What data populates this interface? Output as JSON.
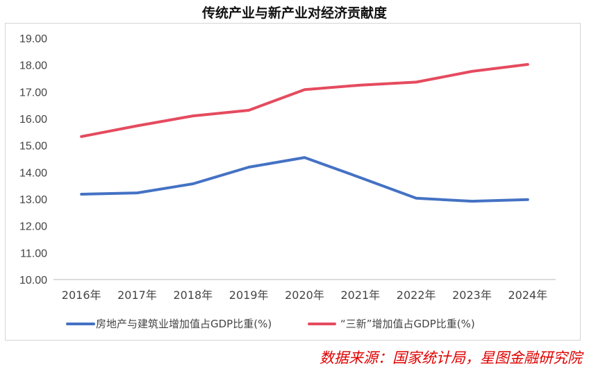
{
  "chart_data": {
    "type": "line",
    "title": "传统产业与新产业对经济贡献度",
    "xlabel": "",
    "ylabel": "",
    "categories": [
      "2016年",
      "2017年",
      "2018年",
      "2019年",
      "2020年",
      "2021年",
      "2022年",
      "2023年",
      "2024年"
    ],
    "ylim": [
      10,
      19
    ],
    "yticks": [
      "10.00",
      "11.00",
      "12.00",
      "13.00",
      "14.00",
      "15.00",
      "16.00",
      "17.00",
      "18.00",
      "19.00"
    ],
    "grid": false,
    "legend_position": "bottom",
    "series": [
      {
        "name": "房地产与建筑业增加值占GDP比重(%)",
        "color": "#4472c4",
        "values": [
          13.18,
          13.23,
          13.57,
          14.19,
          14.55,
          13.8,
          13.03,
          12.92,
          12.98
        ]
      },
      {
        "name": "“三新”增加值占GDP比重(%)",
        "color": "#e54b5e",
        "values": [
          15.33,
          15.73,
          16.1,
          16.31,
          17.08,
          17.25,
          17.36,
          17.76,
          18.02
        ]
      }
    ]
  },
  "source": "数据来源：国家统计局，星图金融研究院"
}
